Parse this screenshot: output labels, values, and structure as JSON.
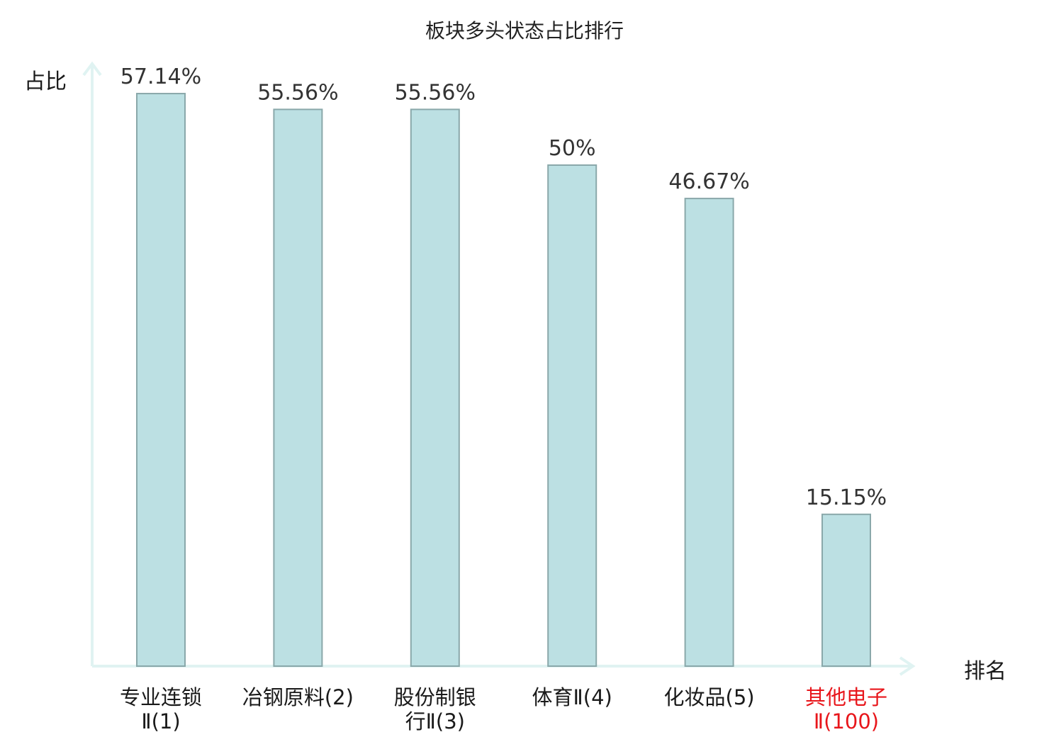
{
  "chart_data": {
    "type": "bar",
    "title": "板块多头状态占比排行",
    "ylabel": "占比",
    "xlabel": "排名",
    "categories": [
      [
        "专业连锁",
        "Ⅱ(1)"
      ],
      [
        "冶钢原料(2)"
      ],
      [
        "股份制银",
        "行Ⅱ(3)"
      ],
      [
        "体育Ⅱ(4)"
      ],
      [
        "化妆品(5)"
      ],
      [
        "其他电子",
        "Ⅱ(100)"
      ]
    ],
    "values": [
      57.14,
      55.56,
      55.56,
      50,
      46.67,
      15.15
    ],
    "value_labels": [
      "57.14%",
      "55.56%",
      "55.56%",
      "50%",
      "46.67%",
      "15.15%"
    ],
    "highlight_index": 5,
    "ylim": [
      0,
      60
    ],
    "grid": false,
    "colors": {
      "bar_fill": "#bce0e3",
      "bar_stroke": "#8aa8aa",
      "axis": "#e0f3f2",
      "label": "#333333",
      "highlight": "#e8161b"
    }
  }
}
